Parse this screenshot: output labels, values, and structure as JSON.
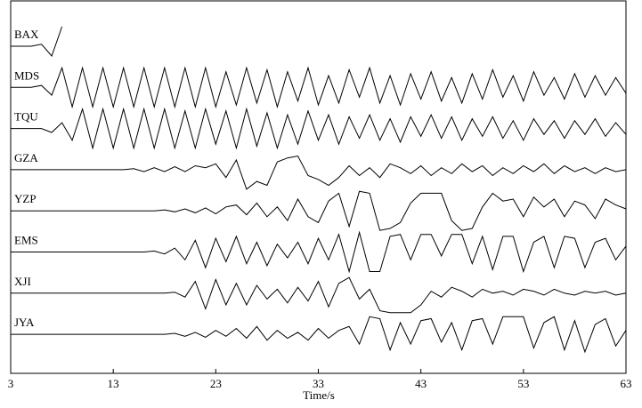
{
  "chart_data": {
    "type": "seismogram",
    "xlabel": "Time/s",
    "xlim": [
      3,
      63
    ],
    "xticks": [
      3,
      13,
      23,
      33,
      43,
      53,
      63
    ],
    "color": "#000000",
    "x": [
      3,
      4,
      5,
      6,
      7,
      8,
      9,
      10,
      11,
      12,
      13,
      14,
      15,
      16,
      17,
      18,
      19,
      20,
      21,
      22,
      23,
      24,
      25,
      26,
      27,
      28,
      29,
      30,
      31,
      32,
      33,
      34,
      35,
      36,
      37,
      38,
      39,
      40,
      41,
      42,
      43,
      44,
      45,
      46,
      47,
      48,
      49,
      50,
      51,
      52,
      53,
      54,
      55,
      56,
      57,
      58,
      59,
      60,
      61,
      62,
      63
    ],
    "series": [
      {
        "name": "BAX",
        "values": [
          0,
          0,
          0,
          0.1,
          -0.5,
          1,
          null,
          null,
          null,
          null,
          null,
          null,
          null,
          null,
          null,
          null,
          null,
          null,
          null,
          null,
          null,
          null,
          null,
          null,
          null,
          null,
          null,
          null,
          null,
          null,
          null,
          null,
          null,
          null,
          null,
          null,
          null,
          null,
          null,
          null,
          null,
          null,
          null,
          null,
          null,
          null,
          null,
          null,
          null,
          null,
          null,
          null,
          null,
          null,
          null,
          null,
          null,
          null,
          null,
          null,
          null
        ]
      },
      {
        "name": "MDS",
        "values": [
          0,
          0,
          0,
          0.1,
          -0.4,
          1,
          -1,
          1,
          -1,
          1,
          -1,
          1,
          -1,
          1,
          -1,
          1,
          -1,
          1,
          -1,
          1,
          -1,
          0.8,
          -0.9,
          1,
          -0.8,
          0.9,
          -1,
          0.8,
          -0.7,
          1,
          -0.9,
          0.6,
          -0.8,
          0.9,
          -0.5,
          1,
          -0.8,
          0.6,
          -0.9,
          0.7,
          -0.6,
          0.8,
          -0.7,
          0.5,
          -0.8,
          0.7,
          -0.6,
          0.9,
          -0.5,
          0.6,
          -0.7,
          0.8,
          -0.4,
          0.5,
          -0.6,
          0.7,
          -0.5,
          0.6,
          -0.4,
          0.5,
          -0.3
        ]
      },
      {
        "name": "TQU",
        "values": [
          0,
          0,
          0,
          0,
          -0.2,
          0.3,
          -0.6,
          1,
          -1,
          1,
          -1,
          1,
          -1,
          1,
          -1,
          1,
          -1,
          0.9,
          -1,
          1,
          -0.8,
          0.9,
          -1,
          1,
          -0.9,
          0.8,
          -1,
          0.7,
          -0.8,
          0.9,
          -0.6,
          0.7,
          -0.8,
          0.6,
          -0.5,
          0.7,
          -0.6,
          0.5,
          -0.7,
          0.6,
          -0.4,
          0.7,
          -0.5,
          0.6,
          -0.6,
          0.5,
          -0.4,
          0.6,
          -0.5,
          0.4,
          -0.6,
          0.5,
          -0.3,
          0.4,
          -0.5,
          0.4,
          -0.3,
          0.5,
          -0.4,
          0.3,
          -0.3
        ]
      },
      {
        "name": "GZA",
        "values": [
          0,
          0,
          0,
          0,
          0,
          0,
          0,
          0,
          0,
          0,
          0,
          0,
          0.05,
          -0.1,
          0.1,
          -0.1,
          0.15,
          -0.1,
          0.2,
          0.1,
          0.3,
          -0.4,
          0.5,
          -1,
          -0.6,
          -0.8,
          0.4,
          0.6,
          0.7,
          -0.3,
          -0.5,
          -0.8,
          -0.4,
          0.2,
          -0.3,
          0.1,
          -0.4,
          0.3,
          0.1,
          -0.2,
          0.2,
          -0.3,
          0.1,
          -0.2,
          0.3,
          -0.1,
          0.2,
          -0.3,
          0.1,
          -0.2,
          0.2,
          -0.1,
          0.3,
          -0.2,
          0.2,
          -0.1,
          0.1,
          -0.2,
          0.1,
          -0.1,
          0
        ]
      },
      {
        "name": "YZP",
        "values": [
          0,
          0,
          0,
          0,
          0,
          0,
          0,
          0,
          0,
          0,
          0,
          0,
          0,
          0,
          0,
          0.05,
          -0.05,
          0.1,
          -0.1,
          0.15,
          -0.15,
          0.2,
          0.3,
          -0.2,
          0.4,
          -0.3,
          0.2,
          -0.5,
          0.6,
          -0.3,
          -0.6,
          0.5,
          0.9,
          -0.8,
          1,
          0.9,
          -1,
          -0.9,
          -0.6,
          0.4,
          0.9,
          0.9,
          0.9,
          -0.5,
          -1,
          -0.9,
          0.2,
          0.9,
          0.5,
          0.6,
          -0.3,
          0.7,
          0.2,
          0.6,
          -0.3,
          0.5,
          0.3,
          -0.4,
          0.6,
          0.3,
          0.1
        ]
      },
      {
        "name": "EMS",
        "values": [
          0,
          0,
          0,
          0,
          0,
          0,
          0,
          0,
          0,
          0,
          0,
          0,
          0,
          0,
          0.05,
          -0.1,
          0.2,
          -0.4,
          0.6,
          -0.8,
          0.7,
          -0.5,
          0.8,
          -0.6,
          0.5,
          -0.7,
          0.4,
          -0.3,
          0.5,
          -0.6,
          0.7,
          -0.4,
          0.9,
          -1,
          1,
          -1,
          -1,
          0.8,
          0.9,
          -0.4,
          0.9,
          0.9,
          -0.2,
          0.9,
          0.9,
          -0.6,
          0.8,
          -0.9,
          0.8,
          0.8,
          -1,
          0.5,
          0.8,
          -0.8,
          0.8,
          0.7,
          -0.8,
          0.5,
          0.7,
          -0.4,
          0.3
        ]
      },
      {
        "name": "XJI",
        "values": [
          0,
          0,
          0,
          0,
          0,
          0,
          0,
          0,
          0,
          0,
          0,
          0,
          0,
          0,
          0,
          0,
          0.05,
          -0.2,
          0.6,
          -0.8,
          0.7,
          -0.6,
          0.5,
          -0.6,
          0.4,
          -0.3,
          0.2,
          -0.5,
          0.3,
          -0.4,
          0.6,
          -0.7,
          0.5,
          0.8,
          -0.3,
          0.2,
          -0.9,
          -1,
          -1,
          -1,
          -0.6,
          0.1,
          -0.2,
          0.3,
          0.1,
          -0.2,
          0.2,
          0,
          0.1,
          -0.1,
          0.2,
          0.1,
          -0.1,
          0.2,
          0,
          -0.1,
          0.1,
          0,
          0.1,
          -0.1,
          0
        ]
      },
      {
        "name": "JYA",
        "values": [
          0,
          0,
          0,
          0,
          0,
          0,
          0,
          0,
          0,
          0,
          0,
          0,
          0,
          0,
          0,
          0,
          0.05,
          -0.1,
          0.1,
          -0.15,
          0.2,
          -0.1,
          0.3,
          -0.2,
          0.4,
          -0.3,
          0.2,
          -0.2,
          0.1,
          -0.3,
          0.3,
          -0.2,
          0.2,
          0.4,
          -0.5,
          0.9,
          0.8,
          -0.8,
          0.6,
          -0.5,
          0.7,
          0.8,
          -0.4,
          0.6,
          -0.8,
          0.7,
          0.8,
          -0.5,
          0.9,
          0.9,
          0.9,
          -0.7,
          0.6,
          0.9,
          -0.8,
          0.7,
          -0.9,
          0.5,
          0.8,
          -0.6,
          0.2
        ]
      }
    ]
  }
}
